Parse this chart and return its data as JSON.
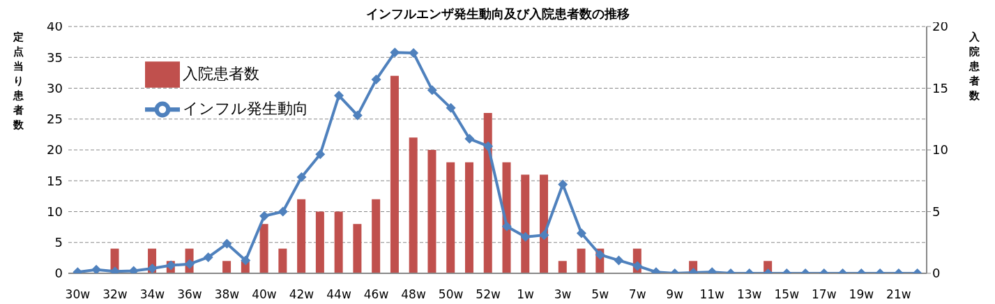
{
  "chart_data": {
    "type": "bar",
    "title": "インフルエンザ発生動向及び入院患者数の推移",
    "ylabel": "定点当り患者数",
    "y2label": "入院患者数",
    "categories": [
      "30w",
      null,
      "32w",
      null,
      "34w",
      null,
      "36w",
      null,
      "38w",
      null,
      "40w",
      null,
      "42w",
      null,
      "44w",
      null,
      "46w",
      null,
      "48w",
      null,
      "50w",
      null,
      "52w",
      null,
      "1w",
      null,
      "3w",
      null,
      "5w",
      null,
      "7w",
      null,
      "9w",
      null,
      "11w",
      null,
      "13w",
      null,
      "15w",
      null,
      "17w",
      null,
      "19w",
      null,
      "21w",
      null
    ],
    "series": [
      {
        "name": "入院患者数",
        "axis": "y2",
        "color": "#c0504d",
        "values": [
          0,
          0,
          2,
          0,
          2,
          1,
          2,
          0,
          1,
          1,
          4,
          2,
          6,
          5,
          5,
          4,
          6,
          16,
          11,
          10,
          9,
          9,
          13,
          9,
          8,
          8,
          1,
          2,
          2,
          0,
          2,
          0,
          0,
          1,
          0,
          0,
          0,
          1,
          0,
          0,
          0,
          0,
          0,
          0,
          0,
          0
        ]
      },
      {
        "name": "インフル発生動向",
        "type": "line",
        "color": "#4f81bd",
        "marker": "diamond",
        "values": [
          0.2,
          0.6,
          0.3,
          0.4,
          0.8,
          1.3,
          1.5,
          2.6,
          4.8,
          2.1,
          9.3,
          10.0,
          15.6,
          19.3,
          28.8,
          25.6,
          31.4,
          35.8,
          35.7,
          29.7,
          26.8,
          21.8,
          20.6,
          7.6,
          5.9,
          6.2,
          14.4,
          6.5,
          3.0,
          2.1,
          1.2,
          0.2,
          0,
          0.1,
          0.2,
          0,
          0,
          0,
          0,
          0,
          0,
          0,
          0,
          0,
          0,
          0
        ]
      }
    ],
    "ylim": [
      0,
      40
    ],
    "yticks": [
      0,
      5,
      10,
      15,
      20,
      25,
      30,
      35,
      40
    ],
    "y2lim": [
      0,
      20
    ],
    "y2ticks": [
      0,
      5,
      10,
      15,
      20
    ],
    "grid": "y",
    "legend": "top left"
  }
}
